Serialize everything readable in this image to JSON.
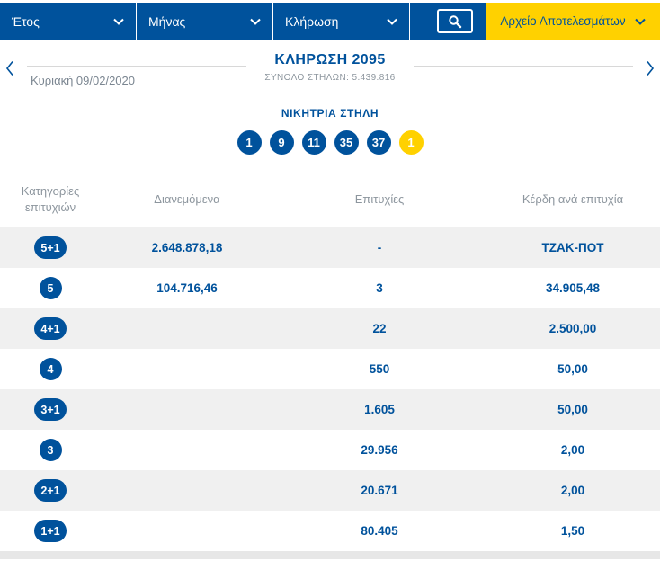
{
  "colors": {
    "primary_blue": "#00529c",
    "accent_yellow": "#ffd100",
    "row_alt": "#f0f0f0",
    "muted_gray": "#8d969e"
  },
  "icons": {
    "chevron_down": "chevron-down",
    "chevron_left": "chevron-left",
    "chevron_right": "chevron-right",
    "search": "magnifier"
  },
  "topbar": {
    "dropdowns": [
      {
        "label": "Έτος"
      },
      {
        "label": "Μήνας"
      },
      {
        "label": "Κλήρωση"
      }
    ],
    "archive_button_label": "Αρχείο Αποτελεσμάτων"
  },
  "draw_nav": {
    "date": "Κυριακή 09/02/2020",
    "title": "ΚΛΗΡΩΣΗ 2095",
    "subtitle": "ΣΥΝΟΛΟ ΣΤΗΛΩΝ: 5.439.816"
  },
  "winning_column": {
    "heading": "ΝΙΚΗΤΡΙΑ ΣΤΗΛΗ",
    "numbers": [
      "1",
      "9",
      "11",
      "35",
      "37"
    ],
    "joker": "1"
  },
  "table": {
    "headers": {
      "categories": "Κατηγορίες επιτυχιών",
      "distributed": "Διανεμόμενα",
      "wins": "Επιτυχίες",
      "prize_per_win": "Κέρδη ανά επιτυχία"
    },
    "rows": [
      {
        "category": "5+1",
        "distributed": "2.648.878,18",
        "wins": "-",
        "prize": "ΤΖΑΚ-ΠΟΤ"
      },
      {
        "category": "5",
        "distributed": "104.716,46",
        "wins": "3",
        "prize": "34.905,48"
      },
      {
        "category": "4+1",
        "distributed": "",
        "wins": "22",
        "prize": "2.500,00"
      },
      {
        "category": "4",
        "distributed": "",
        "wins": "550",
        "prize": "50,00"
      },
      {
        "category": "3+1",
        "distributed": "",
        "wins": "1.605",
        "prize": "50,00"
      },
      {
        "category": "3",
        "distributed": "",
        "wins": "29.956",
        "prize": "2,00"
      },
      {
        "category": "2+1",
        "distributed": "",
        "wins": "20.671",
        "prize": "2,00"
      },
      {
        "category": "1+1",
        "distributed": "",
        "wins": "80.405",
        "prize": "1,50"
      }
    ]
  }
}
